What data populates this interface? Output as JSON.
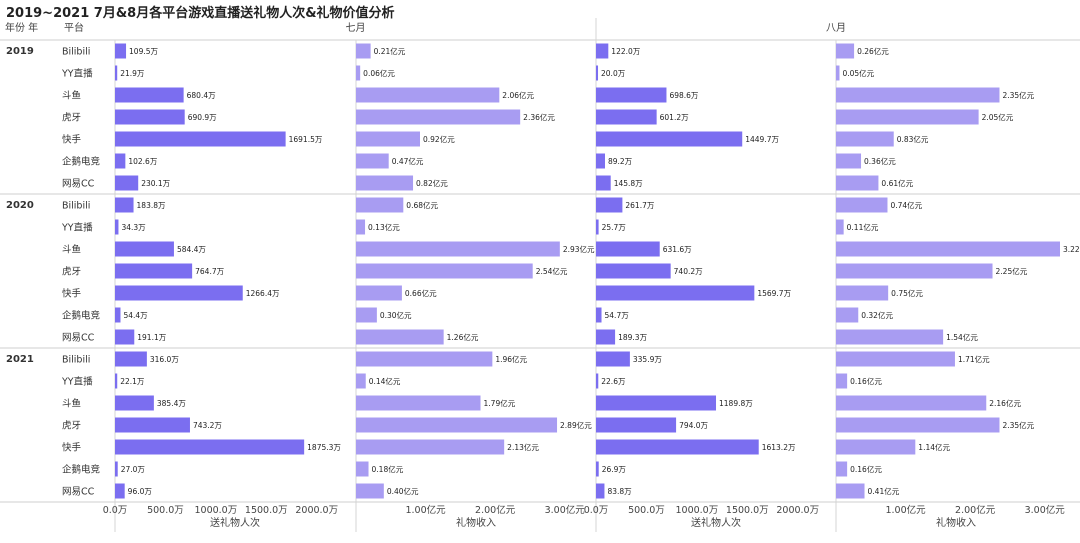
{
  "title": "2019~2021 7月&8月各平台游戏直播送礼物人次&礼物价值分析",
  "chart_data": {
    "type": "bar",
    "header": {
      "year_col": "年份 年",
      "platform_col": "平台"
    },
    "months": [
      "七月",
      "八月"
    ],
    "years": [
      "2019",
      "2020",
      "2021"
    ],
    "platforms": [
      "Bilibili",
      "YY直播",
      "斗鱼",
      "虎牙",
      "快手",
      "企鹅电竞",
      "网易CC"
    ],
    "measures": [
      {
        "name": "送礼物人次",
        "unit": "万",
        "xlim": [
          0,
          2300
        ],
        "ticks": [
          0,
          500,
          1000,
          1500,
          2000
        ],
        "tick_labels": [
          "0.0万",
          "500.0万",
          "1000.0万",
          "1500.0万",
          "2000.0万"
        ]
      },
      {
        "name": "礼物收入",
        "unit": "亿元",
        "xlim": [
          0,
          3.45
        ],
        "ticks": [
          1,
          2,
          3
        ],
        "tick_labels": [
          "1.00亿元",
          "2.00亿元",
          "3.00亿元"
        ]
      }
    ],
    "values": {
      "七月": {
        "送礼物人次": {
          "2019": [
            109.5,
            21.9,
            680.4,
            690.9,
            1691.5,
            102.6,
            230.1
          ],
          "2020": [
            183.8,
            34.3,
            584.4,
            764.7,
            1266.4,
            54.4,
            191.1
          ],
          "2021": [
            316.0,
            22.1,
            385.4,
            743.2,
            1875.3,
            27.0,
            96.0
          ]
        },
        "礼物收入": {
          "2019": [
            0.21,
            0.06,
            2.06,
            2.36,
            0.92,
            0.47,
            0.82
          ],
          "2020": [
            0.68,
            0.13,
            2.93,
            2.54,
            0.66,
            0.3,
            1.26
          ],
          "2021": [
            1.96,
            0.14,
            1.79,
            2.89,
            2.13,
            0.18,
            0.4
          ]
        }
      },
      "八月": {
        "送礼物人次": {
          "2019": [
            122.0,
            20.0,
            698.6,
            601.2,
            1449.7,
            89.2,
            145.8
          ],
          "2020": [
            261.7,
            25.7,
            631.6,
            740.2,
            1569.7,
            54.7,
            189.3
          ],
          "2021": [
            335.9,
            22.6,
            1189.8,
            794.0,
            1613.2,
            26.9,
            83.8
          ]
        },
        "礼物收入": {
          "2019": [
            0.26,
            0.05,
            2.35,
            2.05,
            0.83,
            0.36,
            0.61
          ],
          "2020": [
            0.74,
            0.11,
            3.22,
            2.25,
            0.75,
            0.32,
            1.54
          ],
          "2021": [
            1.71,
            0.16,
            2.16,
            2.35,
            1.14,
            0.16,
            0.41
          ]
        }
      }
    },
    "colors": {
      "送礼物人次": "#7b6ef0",
      "礼物收入": "#a89cf2"
    },
    "grid": false,
    "legend": "none"
  }
}
